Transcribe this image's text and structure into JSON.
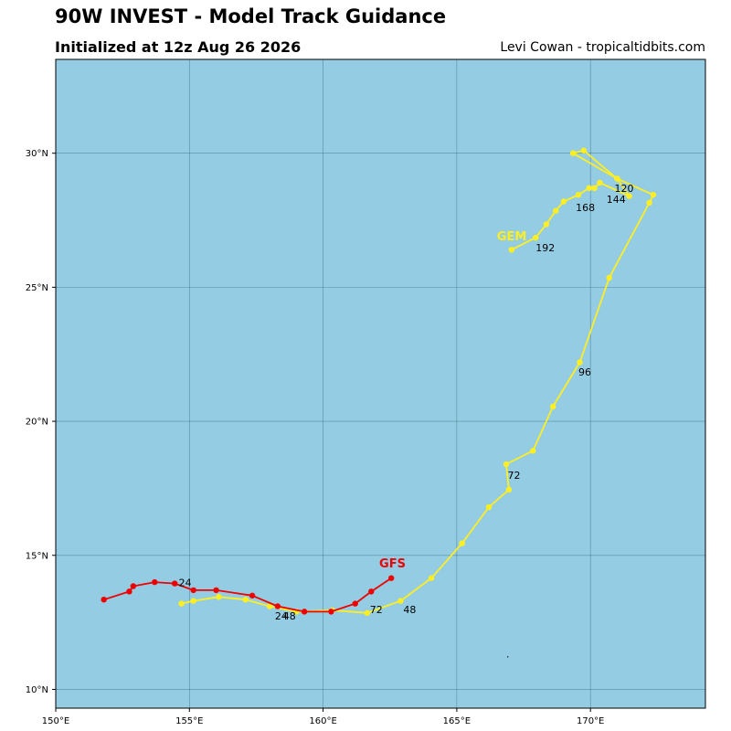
{
  "header": {
    "title": "90W INVEST - Model Track Guidance",
    "subtitle": "Initialized at 12z Aug 26 2026",
    "credit": "Levi Cowan - tropicaltidbits.com"
  },
  "map": {
    "lon_range": [
      150,
      174.3
    ],
    "lat_range": [
      9.3,
      33.5
    ],
    "x_ticks": [
      150,
      155,
      160,
      165,
      170
    ],
    "x_tick_labels": [
      "150°E",
      "155°E",
      "160°E",
      "165°E",
      "170°E"
    ],
    "y_ticks": [
      10,
      15,
      20,
      25,
      30
    ],
    "y_tick_labels": [
      "10°N",
      "15°N",
      "20°N",
      "25°N",
      "30°N"
    ],
    "ocean_color": "#94cde3",
    "grid": true
  },
  "tracks": [
    {
      "name": "GFS",
      "color": "#ee0000",
      "label_color": "#ee0000",
      "name_pos": [
        162.1,
        14.55
      ],
      "points": [
        [
          162.55,
          14.15
        ],
        [
          161.8,
          13.65
        ],
        [
          161.2,
          13.2
        ],
        [
          160.3,
          12.9
        ],
        [
          159.3,
          12.9
        ],
        [
          158.3,
          13.1
        ],
        [
          157.35,
          13.5
        ],
        [
          156.0,
          13.7
        ],
        [
          155.15,
          13.7
        ],
        [
          154.45,
          13.95
        ],
        [
          153.7,
          14.0
        ],
        [
          152.9,
          13.85
        ],
        [
          152.75,
          13.65
        ],
        [
          151.8,
          13.35
        ]
      ],
      "hour_labels": [
        {
          "text": "72",
          "pos": [
            161.75,
            12.85
          ]
        },
        {
          "text": "48",
          "pos": [
            158.5,
            12.6
          ]
        },
        {
          "text": "24",
          "pos": [
            154.6,
            13.85
          ]
        }
      ]
    },
    {
      "name": "GEM",
      "color": "#ffee22",
      "label_color": "#ffee22",
      "name_pos": [
        166.5,
        26.75
      ],
      "points": [
        [
          154.7,
          13.2
        ],
        [
          155.15,
          13.3
        ],
        [
          156.1,
          13.45
        ],
        [
          157.1,
          13.35
        ],
        [
          158.0,
          13.1
        ],
        [
          159.0,
          12.9
        ],
        [
          160.35,
          12.95
        ],
        [
          161.65,
          12.85
        ],
        [
          162.9,
          13.3
        ],
        [
          164.05,
          14.15
        ],
        [
          165.2,
          15.45
        ],
        [
          166.2,
          16.8
        ],
        [
          166.95,
          17.45
        ],
        [
          166.85,
          18.4
        ],
        [
          167.85,
          18.9
        ],
        [
          168.6,
          20.55
        ],
        [
          169.6,
          22.2
        ],
        [
          170.7,
          25.35
        ],
        [
          172.2,
          28.15
        ],
        [
          172.35,
          28.45
        ],
        [
          171.0,
          29.05
        ],
        [
          169.75,
          30.1
        ],
        [
          169.35,
          30.0
        ],
        [
          171.0,
          29.05
        ],
        [
          171.45,
          28.4
        ],
        [
          170.35,
          28.9
        ],
        [
          170.15,
          28.7
        ],
        [
          169.95,
          28.7
        ],
        [
          169.55,
          28.45
        ],
        [
          169.0,
          28.2
        ],
        [
          168.7,
          27.85
        ],
        [
          168.35,
          27.35
        ],
        [
          167.95,
          26.85
        ],
        [
          167.05,
          26.4
        ]
      ],
      "hour_labels": [
        {
          "text": "24",
          "pos": [
            158.2,
            12.6
          ]
        },
        {
          "text": "48",
          "pos": [
            163.0,
            12.85
          ]
        },
        {
          "text": "72",
          "pos": [
            166.9,
            17.85
          ]
        },
        {
          "text": "96",
          "pos": [
            169.55,
            21.7
          ]
        },
        {
          "text": "120",
          "pos": [
            170.9,
            28.55
          ]
        },
        {
          "text": "144",
          "pos": [
            170.6,
            28.15
          ]
        },
        {
          "text": "168",
          "pos": [
            169.45,
            27.85
          ]
        },
        {
          "text": "192",
          "pos": [
            167.95,
            26.35
          ]
        }
      ]
    }
  ],
  "annotations": [
    {
      "text": ".",
      "pos": [
        166.85,
        11.2
      ]
    }
  ]
}
